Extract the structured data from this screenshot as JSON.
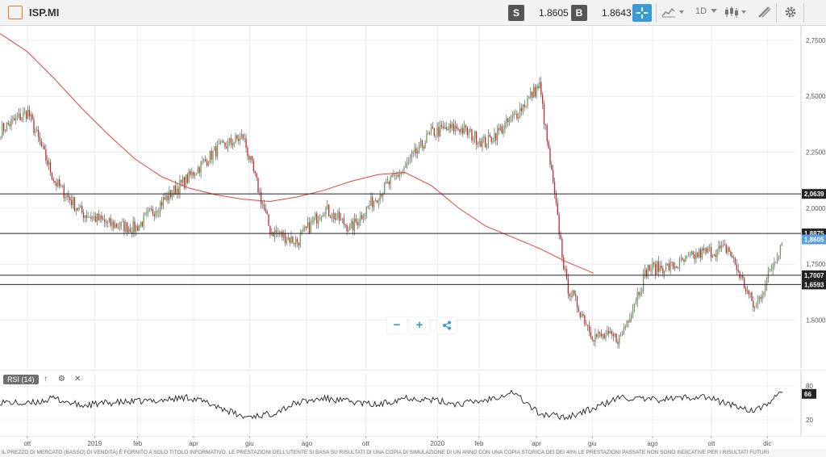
{
  "toolbar": {
    "symbol": "ISP.MI",
    "sell_label": "S",
    "sell_price": "1.8605",
    "buy_label": "B",
    "buy_price": "1.8643",
    "interval": "1D",
    "logo_icon": "chart-logo-icon",
    "crosshair_icon": "crosshair-icon",
    "chart_type_icon": "area-chart-icon",
    "candle_icon": "candlestick-icon",
    "draw_icon": "drawing-tools-icon",
    "settings_icon": "gear-icon"
  },
  "zoom": {
    "minus": "−",
    "plus": "+",
    "share_icon": "share-icon"
  },
  "rsi_panel": {
    "label": "RSI (14)",
    "up_icon": "arrow-up-icon",
    "settings_icon": "gear-icon",
    "close_icon": "close-icon",
    "current_value": "66"
  },
  "disclaimer": "IL PREZZO DI MERCATO (BASSO) DI VENDITA) È FORNITO A SOLO TITOLO INFORMATIVO. LE PRESTAZIONI DELL'UTENTE SI BASA SU RISULTATI DI UNA COPIA DI SIMULAZIONE DI UN ANNO CON UNA COPIA STORICA DEI DEI 40% LE PRESTAZIONI PASSATE NON SONO INDICATIVE PER I RISULTATI FUTURI",
  "chart_data": [
    {
      "type": "candlestick",
      "title": "ISP.MI",
      "y_ticks": [
        "2,7500",
        "2,5000",
        "2,2500",
        "2,0000",
        "1,7500",
        "1,5000"
      ],
      "ylim": [
        1.3,
        2.8
      ],
      "x_ticks": [
        "ott",
        "2019",
        "feb",
        "apr",
        "giu",
        "ago",
        "ott",
        "2020",
        "feb",
        "apr",
        "giu",
        "ago",
        "ott",
        "dic"
      ],
      "x_ticks_pos": [
        0.25,
        2.6,
        4.1,
        6.05,
        8.0,
        10.0,
        12.05,
        14.55,
        16.0,
        18.0,
        19.95,
        22.05,
        24.1,
        26.05
      ],
      "xlim": [
        -0.7,
        27.0
      ],
      "series_closes_monthly": [
        2.35,
        2.43,
        2.12,
        1.98,
        1.93,
        1.91,
        2.03,
        2.14,
        2.26,
        2.32,
        1.9,
        1.85,
        2.0,
        1.91,
        2.06,
        2.18,
        2.34,
        2.36,
        2.29,
        2.4,
        2.55,
        1.66,
        1.43,
        1.42,
        1.73,
        1.74,
        1.8,
        1.82,
        1.55,
        1.85
      ],
      "moving_average": {
        "name": "",
        "color": "#e0463d",
        "start": 2.78,
        "values_monthly": [
          2.7,
          2.58,
          2.45,
          2.33,
          2.22,
          2.14,
          2.09,
          2.06,
          2.04,
          2.03,
          2.05,
          2.08,
          2.12,
          2.15,
          2.16,
          2.1,
          2.0,
          1.92,
          1.87,
          1.82,
          1.76,
          1.71
        ]
      },
      "horizontal_levels": [
        {
          "value": 2.0639,
          "label": "2,0639",
          "color": "#222222"
        },
        {
          "value": 1.8875,
          "label": "1,8875",
          "color": "#222222"
        },
        {
          "value": 1.7007,
          "label": "1,7007",
          "color": "#222222"
        },
        {
          "value": 1.6593,
          "label": "1,6593",
          "color": "#222222"
        }
      ],
      "last_price": {
        "value": 1.8605,
        "label": "1,8605",
        "color": "#5aa0e0"
      },
      "colors": {
        "up": "#6a9e55",
        "down": "#c62828",
        "wick": "#444444"
      },
      "grid": true
    },
    {
      "type": "line",
      "title": "RSI (14)",
      "y_ticks": [
        "80",
        "20"
      ],
      "ylim": [
        0,
        100
      ],
      "current": 66,
      "values_monthly": [
        52,
        48,
        58,
        45,
        50,
        52,
        55,
        60,
        45,
        25,
        30,
        50,
        58,
        52,
        46,
        60,
        55,
        48,
        55,
        70,
        30,
        25,
        40,
        60,
        55,
        58,
        62,
        48,
        35,
        68
      ]
    }
  ]
}
